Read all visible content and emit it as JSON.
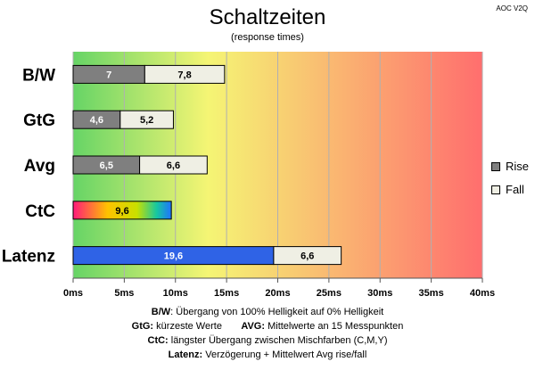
{
  "header": {
    "title": "Schaltzeiten",
    "subtitle": "(response times)",
    "badge": "AOC V2Q"
  },
  "chart_data": {
    "type": "bar",
    "orientation": "horizontal",
    "stacked": true,
    "categories": [
      "B/W",
      "GtG",
      "Avg",
      "CtC",
      "Latenz"
    ],
    "series": [
      {
        "name": "Rise",
        "values": [
          7,
          4.6,
          6.5,
          null,
          19.6
        ],
        "labels": [
          "7",
          "4,6",
          "6,5",
          "",
          "19,6"
        ]
      },
      {
        "name": "Fall",
        "values": [
          7.8,
          5.2,
          6.6,
          null,
          6.6
        ],
        "labels": [
          "7,8",
          "5,2",
          "6,6",
          "",
          "6,6"
        ]
      },
      {
        "name": "CtC",
        "values": [
          null,
          null,
          null,
          9.6,
          null
        ],
        "labels": [
          "",
          "",
          "",
          "9,6",
          ""
        ]
      }
    ],
    "xlim": [
      0,
      40
    ],
    "xticks": [
      0,
      5,
      10,
      15,
      20,
      25,
      30,
      35,
      40
    ],
    "xtick_labels": [
      "0ms",
      "5ms",
      "10ms",
      "15ms",
      "20ms",
      "25ms",
      "30ms",
      "35ms",
      "40ms"
    ],
    "grid": true,
    "legend_position": "right",
    "background_gradient": [
      "#66d466",
      "#f5f574",
      "#ff6e6e"
    ],
    "colors": {
      "rise": "#7f7f7f",
      "fall": "#efefe4",
      "latenz_rise": "#2f63e6"
    }
  },
  "legend": {
    "rise": "Rise",
    "fall": "Fall"
  },
  "notes": {
    "line1_key": "B/W",
    "line1_text": ":  Übergang von 100% Helligkeit auf 0% Helligkeit",
    "line2_key_a": "GtG:",
    "line2_text_a": " kürzeste  Werte",
    "line2_key_b": "AVG:",
    "line2_text_b": " Mittelwerte  an 15 Messpunkten",
    "line3_key": "CtC:",
    "line3_text": " längster Übergang  zwischen Mischfarben  (C,M,Y)",
    "line4_key": "Latenz:",
    "line4_text": " Verzögerung  + Mittelwert  Avg rise/fall"
  }
}
